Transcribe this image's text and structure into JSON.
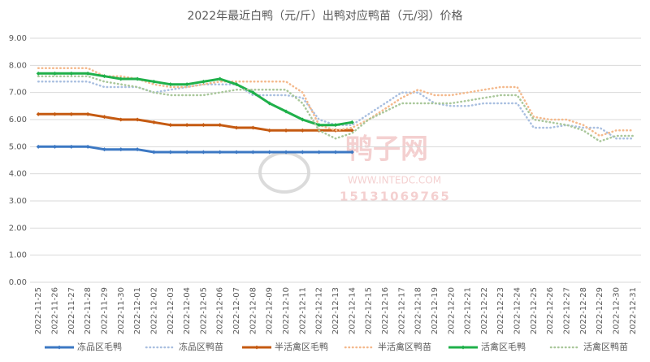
{
  "chart_data": {
    "type": "line",
    "title": "2022年最近白鸭（元/斤）出鸭对应鸭苗（元/羽）价格",
    "watermark": {
      "name": "鸭子网",
      "site": "WWW.INTEDC.COM",
      "phone": "15131069765"
    },
    "categories": [
      "2022-11-25",
      "2022-11-26",
      "2022-11-27",
      "2022-11-28",
      "2022-11-29",
      "2022-11-30",
      "2022-12-01",
      "2022-12-02",
      "2022-12-03",
      "2022-12-04",
      "2022-12-05",
      "2022-12-06",
      "2022-12-07",
      "2022-12-08",
      "2022-12-09",
      "2022-12-10",
      "2022-12-11",
      "2022-12-12",
      "2022-12-13",
      "2022-12-14",
      "2022-12-15",
      "2022-12-16",
      "2022-12-17",
      "2022-12-18",
      "2022-12-19",
      "2022-12-20",
      "2022-12-21",
      "2022-12-22",
      "2022-12-23",
      "2022-12-24",
      "2022-12-25",
      "2022-12-26",
      "2022-12-27",
      "2022-12-28",
      "2022-12-29",
      "2022-12-30",
      "2022-12-31"
    ],
    "series": [
      {
        "name": "冻品区毛鸭",
        "color": "#3c78c3",
        "dotted": false,
        "values": [
          5,
          5,
          5,
          5,
          4.9,
          4.9,
          4.9,
          4.8,
          4.8,
          4.8,
          4.8,
          4.8,
          4.8,
          4.8,
          4.8,
          4.8,
          4.8,
          4.8,
          4.8,
          4.8,
          null,
          null,
          null,
          null,
          null,
          null,
          null,
          null,
          null,
          null,
          null,
          null,
          null,
          null,
          null,
          null,
          null
        ]
      },
      {
        "name": "冻品区鸭苗",
        "color": "#a9bfe0",
        "dotted": true,
        "values": [
          7.4,
          7.4,
          7.4,
          7.4,
          7.2,
          7.2,
          7.2,
          7.0,
          7.1,
          7.2,
          7.3,
          7.3,
          7.3,
          6.9,
          6.9,
          6.9,
          6.8,
          6.0,
          5.8,
          5.8,
          6.2,
          6.6,
          7.0,
          7.0,
          6.6,
          6.5,
          6.5,
          6.6,
          6.6,
          6.6,
          5.7,
          5.7,
          5.8,
          5.7,
          5.7,
          5.3,
          5.3
        ]
      },
      {
        "name": "半活禽区毛鸭",
        "color": "#c55a11",
        "dotted": false,
        "values": [
          6.2,
          6.2,
          6.2,
          6.2,
          6.1,
          6.0,
          6.0,
          5.9,
          5.8,
          5.8,
          5.8,
          5.8,
          5.7,
          5.7,
          5.6,
          5.6,
          5.6,
          5.6,
          5.6,
          5.6,
          null,
          null,
          null,
          null,
          null,
          null,
          null,
          null,
          null,
          null,
          null,
          null,
          null,
          null,
          null,
          null,
          null
        ]
      },
      {
        "name": "半活禽区鸭苗",
        "color": "#f4b98c",
        "dotted": true,
        "values": [
          7.9,
          7.9,
          7.9,
          7.9,
          7.6,
          7.6,
          7.5,
          7.3,
          7.2,
          7.2,
          7.3,
          7.4,
          7.4,
          7.4,
          7.4,
          7.4,
          7.0,
          5.8,
          5.6,
          5.7,
          6.0,
          6.4,
          6.8,
          7.1,
          6.9,
          6.9,
          7.0,
          7.1,
          7.2,
          7.2,
          6.1,
          6.0,
          6.0,
          5.8,
          5.4,
          5.6,
          5.6
        ]
      },
      {
        "name": "活禽区毛鸭",
        "color": "#1fb04a",
        "dotted": false,
        "values": [
          7.7,
          7.7,
          7.7,
          7.7,
          7.6,
          7.5,
          7.5,
          7.4,
          7.3,
          7.3,
          7.4,
          7.5,
          7.3,
          7.0,
          6.6,
          6.3,
          6.0,
          5.8,
          5.8,
          5.9,
          null,
          null,
          null,
          null,
          null,
          null,
          null,
          null,
          null,
          null,
          null,
          null,
          null,
          null,
          null,
          null,
          null
        ]
      },
      {
        "name": "活禽区鸭苗",
        "color": "#a9c79a",
        "dotted": true,
        "values": [
          7.6,
          7.6,
          7.6,
          7.6,
          7.4,
          7.3,
          7.2,
          7.0,
          6.9,
          6.9,
          6.9,
          7.0,
          7.1,
          7.1,
          7.1,
          7.1,
          6.6,
          5.6,
          5.3,
          5.5,
          6.0,
          6.3,
          6.6,
          6.6,
          6.6,
          6.6,
          6.7,
          6.8,
          6.9,
          6.9,
          6.0,
          5.9,
          5.8,
          5.6,
          5.2,
          5.4,
          5.4
        ]
      }
    ],
    "ylim": [
      0,
      9
    ],
    "yticks": [
      {
        "value": 0,
        "label": "0.00"
      },
      {
        "value": 1,
        "label": "1.00"
      },
      {
        "value": 2,
        "label": "2.00"
      },
      {
        "value": 3,
        "label": "3.00"
      },
      {
        "value": 4,
        "label": "4.00"
      },
      {
        "value": 5,
        "label": "5.00"
      },
      {
        "value": 6,
        "label": "6.00"
      },
      {
        "value": 7,
        "label": "7.00"
      },
      {
        "value": 8,
        "label": "8.00"
      },
      {
        "value": 9,
        "label": "9.00"
      }
    ],
    "grid": true,
    "legend": "bottom"
  }
}
